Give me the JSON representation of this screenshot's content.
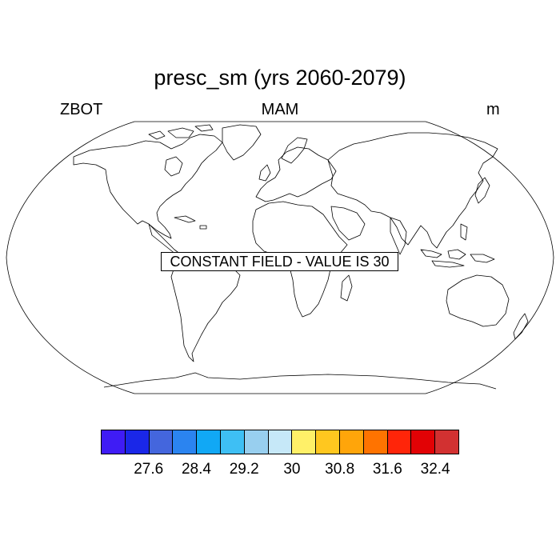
{
  "title": "presc_sm (yrs 2060-2079)",
  "left_label": "ZBOT",
  "center_label": "MAM",
  "right_label": "m",
  "notice": "CONSTANT FIELD - VALUE IS 30",
  "colorbar": {
    "colors": [
      "#3f1cf5",
      "#1a27e8",
      "#4466dd",
      "#2b84f0",
      "#11a8f5",
      "#3ebff4",
      "#98cfef",
      "#c6e8f8",
      "#fff068",
      "#ffc71f",
      "#ffa50a",
      "#ff7300",
      "#ff2509",
      "#e20205",
      "#d23131"
    ],
    "tick_labels": [
      "27.6",
      "28.4",
      "29.2",
      "30",
      "30.8",
      "31.6",
      "32.4"
    ]
  }
}
